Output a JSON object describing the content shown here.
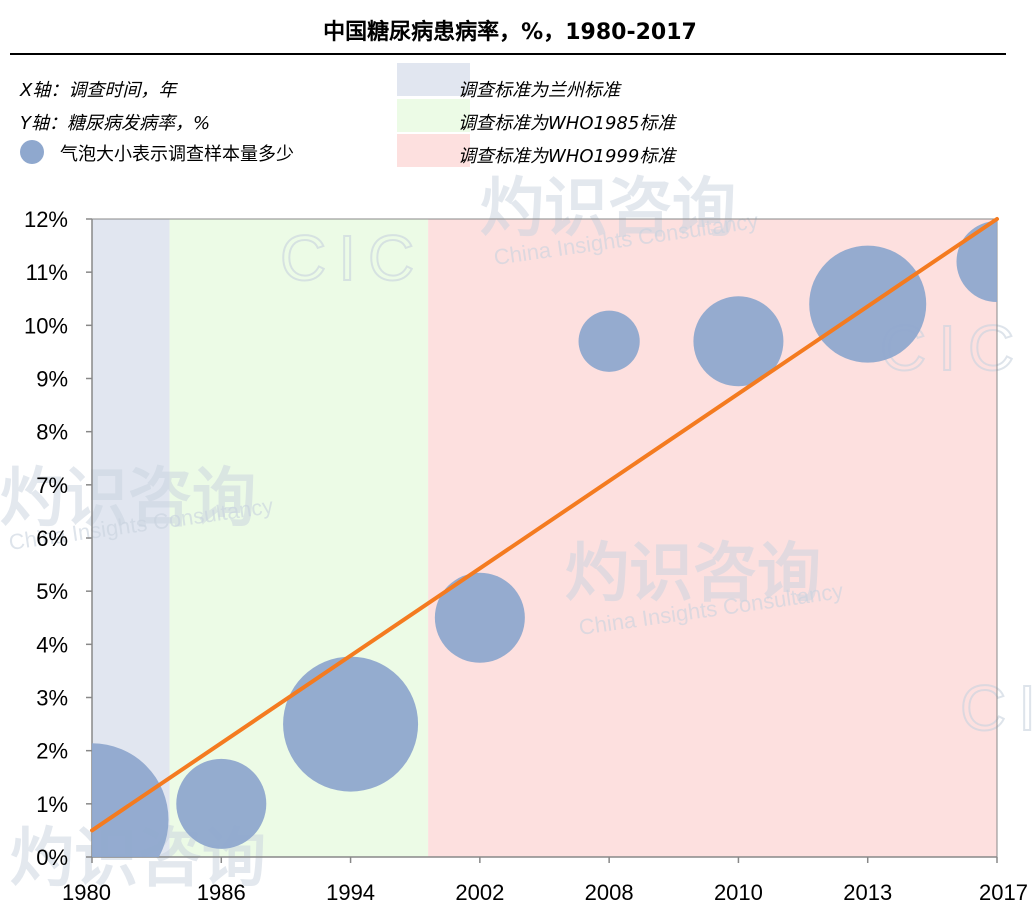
{
  "title": "中国糖尿病患病率，%，1980-2017",
  "legend": {
    "x_axis_text": "X轴：调查时间，年",
    "y_axis_text": "Y轴：糖尿病发病率，%",
    "bubble_text": "气泡大小表示调查样本量多少",
    "bands": [
      {
        "label": "调查标准为兰州标准",
        "color": "#e1e6f0"
      },
      {
        "label": "调查标准为WHO1985标准",
        "color": "#ecfbe6"
      },
      {
        "label": "调查标准为WHO1999标准",
        "color": "#fde0df"
      }
    ]
  },
  "watermark": {
    "cn": "灼识咨询",
    "en": "China Insights Consultancy",
    "logo": "CIC"
  },
  "colors": {
    "bubble": "#8fa8ce",
    "trend": "#f47b20",
    "axis": "#888888"
  },
  "chart_data": {
    "type": "scatter",
    "subtype": "bubble",
    "categories": [
      "1980",
      "1986",
      "1994",
      "2002",
      "2008",
      "2010",
      "2013",
      "2017"
    ],
    "y_tick_labels": [
      "0%",
      "1%",
      "2%",
      "3%",
      "4%",
      "5%",
      "6%",
      "7%",
      "8%",
      "9%",
      "10%",
      "11%",
      "12%"
    ],
    "ylim": [
      0,
      12
    ],
    "y_unit": "%",
    "series": [
      {
        "values": [
          0.7,
          1.0,
          2.5,
          4.5,
          9.7,
          9.7,
          10.4,
          11.2
        ],
        "relative_sample_size": [
          1.7,
          1.0,
          1.5,
          1.0,
          0.68,
          1.0,
          1.3,
          0.9
        ]
      }
    ],
    "trend_line": {
      "start": 0.5,
      "end": 12.0
    },
    "background_bands": [
      {
        "label": "调查标准为兰州标准",
        "x_from": 0,
        "x_to": 0.6
      },
      {
        "label": "调查标准为WHO1985标准",
        "x_from": 0.6,
        "x_to": 2.6
      },
      {
        "label": "调查标准为WHO1999标准",
        "x_from": 2.6,
        "x_to": 7
      }
    ],
    "grid": false
  }
}
